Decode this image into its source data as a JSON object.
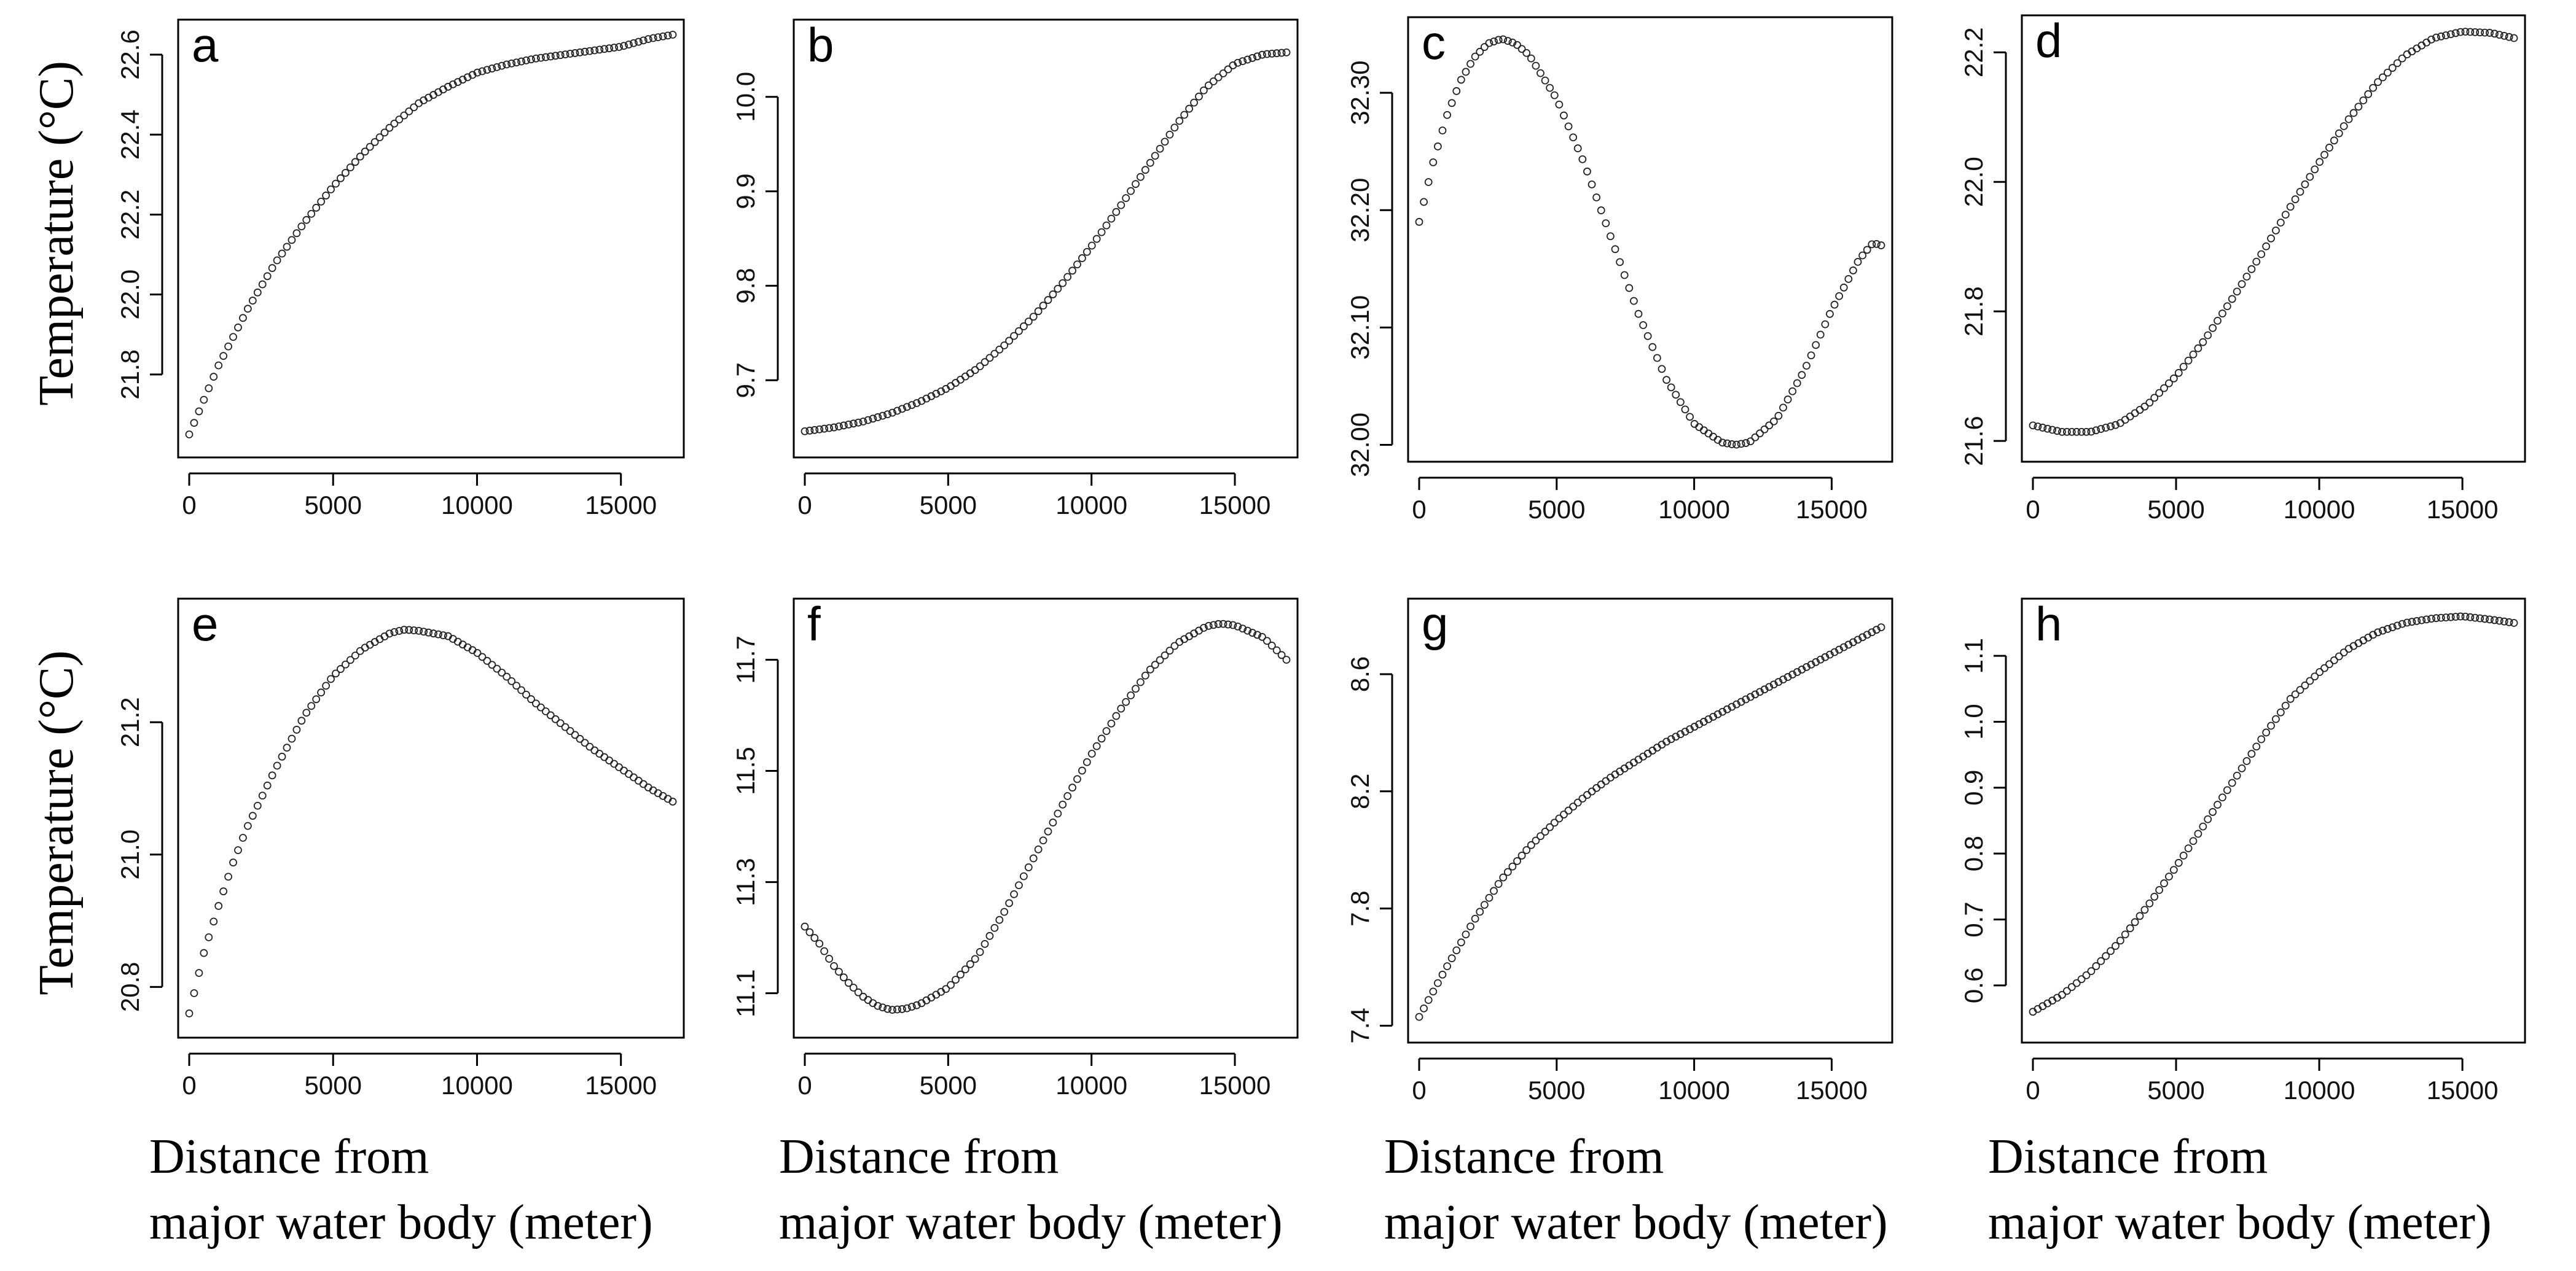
{
  "figure": {
    "ylabel": "Temperature (°C)",
    "xlabel_line1": "Distance from",
    "xlabel_line2": "major water body (meter)"
  },
  "chart_data": [
    {
      "panel": "a",
      "type": "scatter",
      "xlim": [
        0,
        16800
      ],
      "ylim": [
        21.62,
        22.66
      ],
      "xticks": [
        "0",
        "5000",
        "10000",
        "15000"
      ],
      "yticks": [
        "21.8",
        "22.0",
        "22.2",
        "22.4",
        "22.6"
      ],
      "points": [
        [
          0,
          21.65
        ],
        [
          1000,
          21.82
        ],
        [
          2000,
          21.96
        ],
        [
          3000,
          22.08
        ],
        [
          4000,
          22.18
        ],
        [
          5000,
          22.27
        ],
        [
          6000,
          22.35
        ],
        [
          7000,
          22.42
        ],
        [
          8000,
          22.48
        ],
        [
          9000,
          22.52
        ],
        [
          10000,
          22.555
        ],
        [
          11000,
          22.575
        ],
        [
          12000,
          22.59
        ],
        [
          13000,
          22.6
        ],
        [
          14000,
          22.61
        ],
        [
          15000,
          22.62
        ],
        [
          16000,
          22.64
        ],
        [
          16800,
          22.65
        ]
      ]
    },
    {
      "panel": "b",
      "type": "scatter",
      "xlim": [
        0,
        16800
      ],
      "ylim": [
        9.63,
        10.07
      ],
      "xticks": [
        "0",
        "5000",
        "10000",
        "15000"
      ],
      "yticks": [
        "9.7",
        "9.8",
        "9.9",
        "10.0"
      ],
      "points": [
        [
          0,
          9.646
        ],
        [
          1000,
          9.65
        ],
        [
          2000,
          9.656
        ],
        [
          3000,
          9.665
        ],
        [
          4000,
          9.677
        ],
        [
          5000,
          9.692
        ],
        [
          6000,
          9.712
        ],
        [
          7000,
          9.738
        ],
        [
          8000,
          9.768
        ],
        [
          9000,
          9.803
        ],
        [
          10000,
          9.842
        ],
        [
          11000,
          9.884
        ],
        [
          12000,
          9.928
        ],
        [
          13000,
          9.972
        ],
        [
          14000,
          10.01
        ],
        [
          15000,
          10.035
        ],
        [
          16000,
          10.045
        ],
        [
          16800,
          10.047
        ]
      ]
    },
    {
      "panel": "c",
      "type": "scatter",
      "xlim": [
        0,
        16800
      ],
      "ylim": [
        31.995,
        32.355
      ],
      "xticks": [
        "0",
        "5000",
        "10000",
        "15000"
      ],
      "yticks": [
        "32.00",
        "32.10",
        "32.20",
        "32.30"
      ],
      "points": [
        [
          0,
          32.19
        ],
        [
          500,
          32.24
        ],
        [
          1000,
          32.28
        ],
        [
          1500,
          32.31
        ],
        [
          2000,
          32.33
        ],
        [
          2500,
          32.342
        ],
        [
          3000,
          32.346
        ],
        [
          3500,
          32.342
        ],
        [
          4000,
          32.332
        ],
        [
          5000,
          32.295
        ],
        [
          6000,
          32.24
        ],
        [
          7000,
          32.175
        ],
        [
          8000,
          32.11
        ],
        [
          9000,
          32.055
        ],
        [
          10000,
          32.018
        ],
        [
          11000,
          32.002
        ],
        [
          11500,
          32.0
        ],
        [
          12000,
          32.002
        ],
        [
          13000,
          32.022
        ],
        [
          14000,
          32.063
        ],
        [
          15000,
          32.115
        ],
        [
          16000,
          32.158
        ],
        [
          16500,
          32.172
        ],
        [
          16800,
          32.17
        ]
      ]
    },
    {
      "panel": "d",
      "type": "scatter",
      "xlim": [
        0,
        16800
      ],
      "ylim": [
        21.585,
        22.24
      ],
      "xticks": [
        "0",
        "5000",
        "10000",
        "15000"
      ],
      "yticks": [
        "21.6",
        "21.8",
        "22.0",
        "22.2"
      ],
      "points": [
        [
          0,
          21.624
        ],
        [
          1000,
          21.614
        ],
        [
          2000,
          21.614
        ],
        [
          3000,
          21.626
        ],
        [
          4000,
          21.656
        ],
        [
          5000,
          21.7
        ],
        [
          6000,
          21.756
        ],
        [
          7000,
          21.822
        ],
        [
          8000,
          21.89
        ],
        [
          9000,
          21.962
        ],
        [
          10000,
          22.03
        ],
        [
          11000,
          22.095
        ],
        [
          12000,
          22.152
        ],
        [
          13000,
          22.195
        ],
        [
          14000,
          22.222
        ],
        [
          15000,
          22.232
        ],
        [
          16000,
          22.23
        ],
        [
          16800,
          22.222
        ]
      ]
    },
    {
      "panel": "e",
      "type": "scatter",
      "xlim": [
        0,
        16800
      ],
      "ylim": [
        20.74,
        21.37
      ],
      "xticks": [
        "0",
        "5000",
        "10000",
        "15000"
      ],
      "yticks": [
        "20.8",
        "21.0",
        "21.2"
      ],
      "points": [
        [
          0,
          20.76
        ],
        [
          500,
          20.85
        ],
        [
          1000,
          20.92
        ],
        [
          1500,
          20.985
        ],
        [
          2000,
          21.04
        ],
        [
          3000,
          21.13
        ],
        [
          4000,
          21.21
        ],
        [
          5000,
          21.27
        ],
        [
          6000,
          21.31
        ],
        [
          7000,
          21.335
        ],
        [
          7500,
          21.34
        ],
        [
          8000,
          21.338
        ],
        [
          9000,
          21.33
        ],
        [
          10000,
          21.305
        ],
        [
          11000,
          21.27
        ],
        [
          12000,
          21.23
        ],
        [
          13000,
          21.195
        ],
        [
          14000,
          21.16
        ],
        [
          15000,
          21.13
        ],
        [
          16000,
          21.1
        ],
        [
          16800,
          21.08
        ]
      ]
    },
    {
      "panel": "f",
      "type": "scatter",
      "xlim": [
        0,
        16800
      ],
      "ylim": [
        11.04,
        11.79
      ],
      "xticks": [
        "0",
        "5000",
        "10000",
        "15000"
      ],
      "yticks": [
        "11.1",
        "11.3",
        "11.5",
        "11.7"
      ],
      "points": [
        [
          0,
          11.22
        ],
        [
          500,
          11.19
        ],
        [
          1000,
          11.15
        ],
        [
          1500,
          11.12
        ],
        [
          2000,
          11.095
        ],
        [
          2500,
          11.078
        ],
        [
          3000,
          11.07
        ],
        [
          3500,
          11.072
        ],
        [
          4000,
          11.08
        ],
        [
          5000,
          11.11
        ],
        [
          6000,
          11.165
        ],
        [
          7000,
          11.25
        ],
        [
          8000,
          11.345
        ],
        [
          9000,
          11.44
        ],
        [
          10000,
          11.53
        ],
        [
          11000,
          11.61
        ],
        [
          12000,
          11.68
        ],
        [
          13000,
          11.73
        ],
        [
          14000,
          11.76
        ],
        [
          14500,
          11.765
        ],
        [
          15000,
          11.762
        ],
        [
          16000,
          11.74
        ],
        [
          16800,
          11.7
        ]
      ]
    },
    {
      "panel": "g",
      "type": "scatter",
      "xlim": [
        0,
        16800
      ],
      "ylim": [
        7.38,
        8.82
      ],
      "xticks": [
        "0",
        "5000",
        "10000",
        "15000"
      ],
      "yticks": [
        "7.4",
        "7.8",
        "8.2",
        "8.6"
      ],
      "points": [
        [
          0,
          7.43
        ],
        [
          1000,
          7.6
        ],
        [
          2000,
          7.76
        ],
        [
          3000,
          7.9
        ],
        [
          4000,
          8.01
        ],
        [
          5000,
          8.1
        ],
        [
          6000,
          8.18
        ],
        [
          7000,
          8.25
        ],
        [
          8000,
          8.31
        ],
        [
          9000,
          8.37
        ],
        [
          10000,
          8.42
        ],
        [
          11000,
          8.47
        ],
        [
          12000,
          8.52
        ],
        [
          13000,
          8.57
        ],
        [
          14000,
          8.62
        ],
        [
          15000,
          8.67
        ],
        [
          16000,
          8.72
        ],
        [
          16800,
          8.76
        ]
      ]
    },
    {
      "panel": "h",
      "type": "scatter",
      "xlim": [
        0,
        16800
      ],
      "ylim": [
        0.53,
        1.17
      ],
      "xticks": [
        "0",
        "5000",
        "10000",
        "15000"
      ],
      "yticks": [
        "0.6",
        "0.7",
        "0.8",
        "0.9",
        "1.0",
        "1.1"
      ],
      "points": [
        [
          0,
          0.56
        ],
        [
          1000,
          0.585
        ],
        [
          2000,
          0.62
        ],
        [
          3000,
          0.665
        ],
        [
          4000,
          0.72
        ],
        [
          5000,
          0.78
        ],
        [
          6000,
          0.845
        ],
        [
          7000,
          0.91
        ],
        [
          8000,
          0.975
        ],
        [
          9000,
          1.035
        ],
        [
          10000,
          1.075
        ],
        [
          11000,
          1.11
        ],
        [
          12000,
          1.135
        ],
        [
          13000,
          1.15
        ],
        [
          14000,
          1.157
        ],
        [
          15000,
          1.16
        ],
        [
          16000,
          1.155
        ],
        [
          16800,
          1.15
        ]
      ]
    }
  ]
}
